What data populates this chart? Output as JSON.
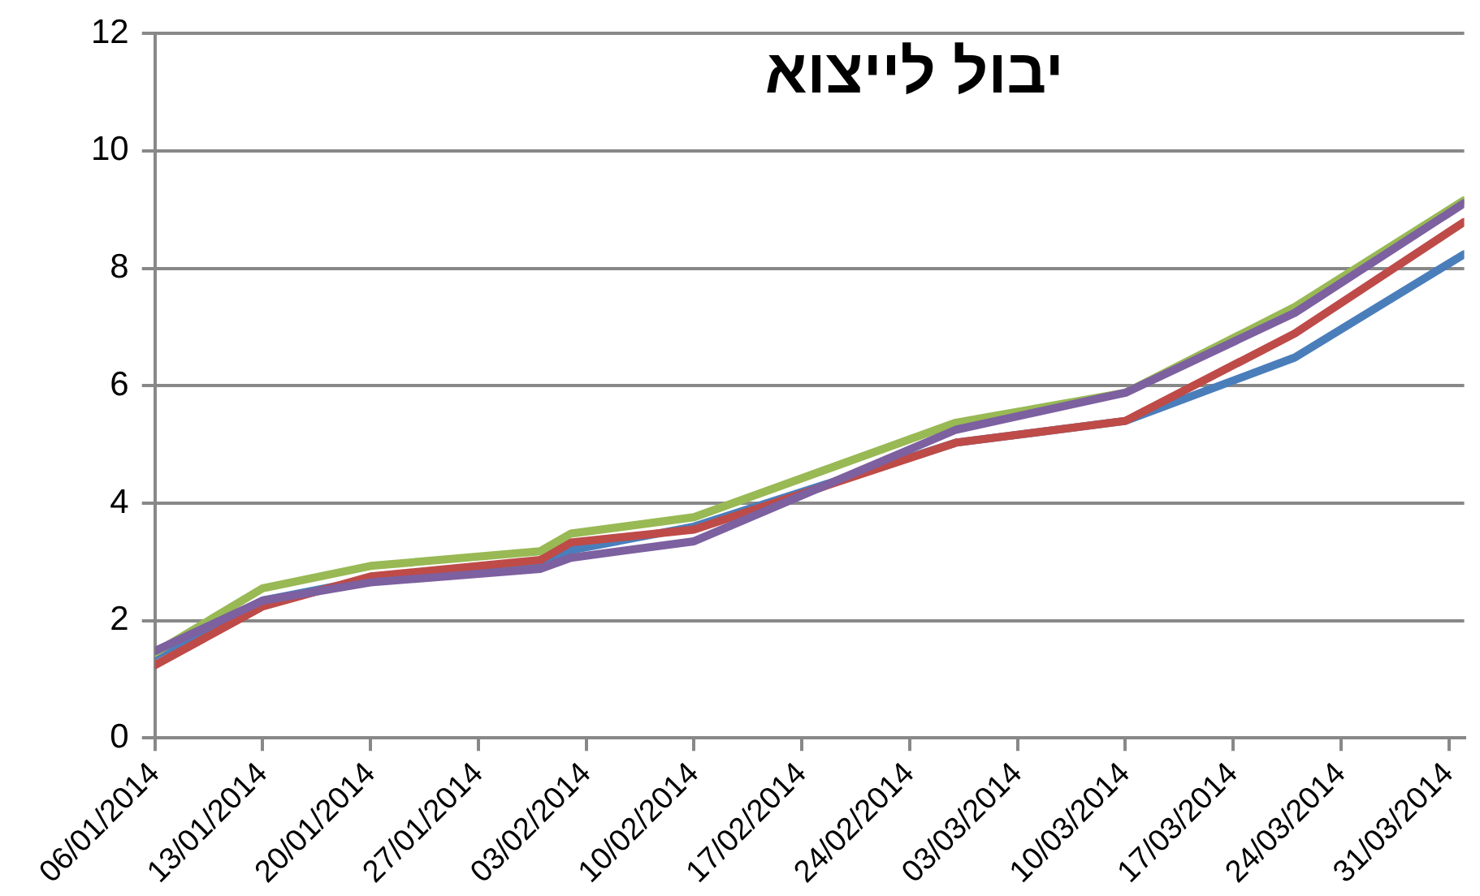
{
  "chart_data": {
    "type": "line",
    "title": "יבול לייצוא",
    "x": [
      "2014-01-06",
      "2014-01-13",
      "2014-01-20",
      "2014-01-31",
      "2014-02-02",
      "2014-02-10",
      "2014-02-27",
      "2014-03-10",
      "2014-03-21",
      "2014-04-01"
    ],
    "series": [
      {
        "color": "#4a7ebb",
        "values": [
          1.4,
          2.34,
          2.7,
          2.95,
          3.2,
          3.6,
          5.03,
          5.4,
          6.48,
          8.24
        ]
      },
      {
        "color": "#be4b48",
        "values": [
          1.24,
          2.24,
          2.75,
          3.03,
          3.33,
          3.55,
          5.03,
          5.4,
          6.89,
          8.79
        ]
      },
      {
        "color": "#98b954",
        "values": [
          1.45,
          2.55,
          2.93,
          3.18,
          3.48,
          3.76,
          5.37,
          5.88,
          7.34,
          9.16
        ]
      },
      {
        "color": "#7d60a0",
        "values": [
          1.48,
          2.34,
          2.65,
          2.88,
          3.07,
          3.35,
          5.25,
          5.88,
          7.24,
          9.11
        ]
      }
    ],
    "xlim": [
      "2014-01-06",
      "2014-04-01"
    ],
    "xticks": [
      {
        "value": "2014-01-06",
        "label": "06/01/2014"
      },
      {
        "value": "2014-01-13",
        "label": "13/01/2014"
      },
      {
        "value": "2014-01-20",
        "label": "20/01/2014"
      },
      {
        "value": "2014-01-27",
        "label": "27/01/2014"
      },
      {
        "value": "2014-02-03",
        "label": "03/02/2014"
      },
      {
        "value": "2014-02-10",
        "label": "10/02/2014"
      },
      {
        "value": "2014-02-17",
        "label": "17/02/2014"
      },
      {
        "value": "2014-02-24",
        "label": "24/02/2014"
      },
      {
        "value": "2014-03-03",
        "label": "03/03/2014"
      },
      {
        "value": "2014-03-10",
        "label": "10/03/2014"
      },
      {
        "value": "2014-03-17",
        "label": "17/03/2014"
      },
      {
        "value": "2014-03-24",
        "label": "24/03/2014"
      },
      {
        "value": "2014-03-31",
        "label": "31/03/2014"
      }
    ],
    "ylim": [
      0,
      12
    ],
    "yticks": [
      0,
      2,
      4,
      6,
      8,
      10,
      12
    ],
    "grid": "y",
    "legend": false,
    "marker": "none",
    "line_style": "solid"
  }
}
